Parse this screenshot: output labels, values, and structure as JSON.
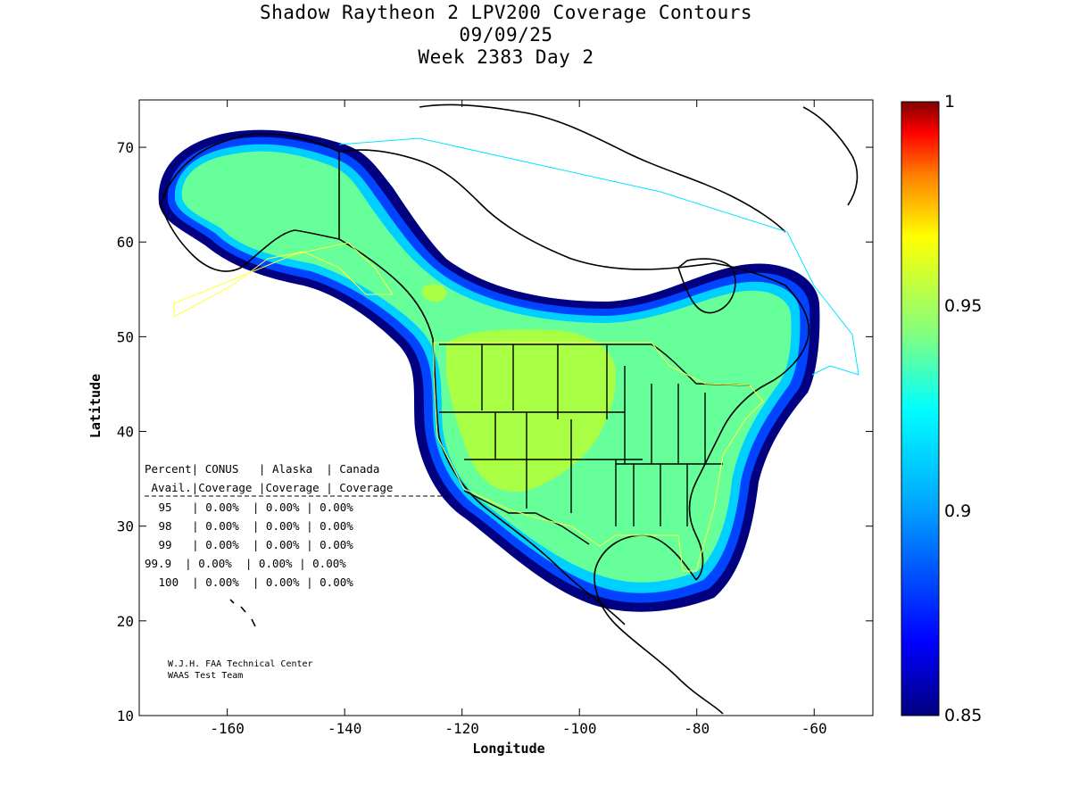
{
  "title": {
    "line1": "Shadow Raytheon 2 LPV200 Coverage Contours",
    "line2": "09/09/25",
    "line3": "Week 2383 Day 2"
  },
  "axes": {
    "xlabel": "Longitude",
    "ylabel": "Latitude",
    "xlim": [
      -175,
      -50
    ],
    "ylim": [
      10,
      75
    ],
    "xticks": [
      "-160",
      "-140",
      "-120",
      "-100",
      "-80",
      "-60"
    ],
    "yticks": [
      "10",
      "20",
      "30",
      "40",
      "50",
      "60",
      "70"
    ]
  },
  "colorbar": {
    "range": [
      0.85,
      1
    ],
    "labels": [
      "1",
      "0.95",
      "0.9",
      "0.85"
    ]
  },
  "coverage_table": {
    "header1": "Percent| CONUS   | Alaska  | Canada",
    "header2": " Avail.|Coverage |Coverage | Coverage",
    "rows": [
      " 95   | 0.00%  | 0.00% | 0.00%",
      " 98   | 0.00%  | 0.00% | 0.00%",
      " 99   | 0.00%  | 0.00% | 0.00%",
      "99.9  | 0.00%  | 0.00% | 0.00%",
      " 100  | 0.00%  | 0.00% | 0.00%"
    ]
  },
  "credits": {
    "line1": "W.J.H. FAA Technical Center",
    "line2": "WAAS Test Team"
  },
  "colors": {
    "coverage_outer": "#000080",
    "coverage_blue": "#0040ff",
    "coverage_cyan": "#00d8ff",
    "coverage_green": "#66ff99",
    "coverage_yellowgreen": "#a8ff44",
    "boundary": "#00e5ff",
    "service_area": "#ffff40"
  }
}
